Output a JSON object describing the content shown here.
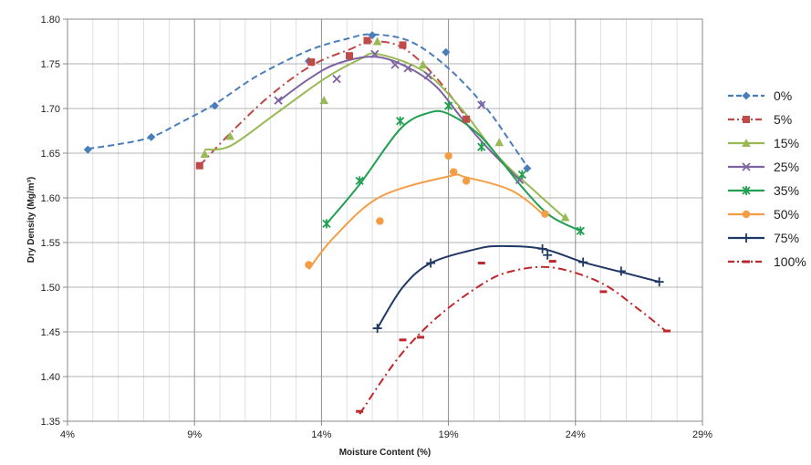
{
  "chart_data": {
    "type": "scatter",
    "xlabel": "Moisture Content (%)",
    "ylabel": "Dry Density (Mg/m³)",
    "xlim": [
      0.04,
      0.29
    ],
    "ylim": [
      1.35,
      1.8
    ],
    "x_major_ticks": [
      0.04,
      0.09,
      0.14,
      0.19,
      0.24,
      0.29
    ],
    "x_tick_labels": [
      "4%",
      "9%",
      "14%",
      "19%",
      "24%",
      "29%"
    ],
    "y_ticks": [
      1.35,
      1.4,
      1.45,
      1.5,
      1.55,
      1.6,
      1.65,
      1.7,
      1.75,
      1.8
    ],
    "y_tick_labels": [
      "1.35",
      "1.40",
      "1.45",
      "1.50",
      "1.55",
      "1.60",
      "1.65",
      "1.70",
      "1.75",
      "1.80"
    ],
    "grid": true,
    "legend_position": "right",
    "series": [
      {
        "name": "0%",
        "color": "#4a7ebb",
        "marker": "diamond",
        "dash": "dashed",
        "points": [
          [
            0.048,
            1.654
          ],
          [
            0.073,
            1.668
          ],
          [
            0.098,
            1.703
          ],
          [
            0.135,
            1.753
          ],
          [
            0.16,
            1.782
          ],
          [
            0.189,
            1.763
          ],
          [
            0.221,
            1.633
          ]
        ],
        "fit": [
          [
            0.048,
            1.655
          ],
          [
            0.06,
            1.66
          ],
          [
            0.073,
            1.668
          ],
          [
            0.085,
            1.685
          ],
          [
            0.098,
            1.705
          ],
          [
            0.115,
            1.737
          ],
          [
            0.135,
            1.765
          ],
          [
            0.15,
            1.778
          ],
          [
            0.16,
            1.783
          ],
          [
            0.175,
            1.775
          ],
          [
            0.19,
            1.745
          ],
          [
            0.205,
            1.7
          ],
          [
            0.215,
            1.66
          ],
          [
            0.221,
            1.635
          ]
        ]
      },
      {
        "name": "5%",
        "color": "#be4b48",
        "marker": "square",
        "dash": "dashdot",
        "points": [
          [
            0.092,
            1.636
          ],
          [
            0.136,
            1.752
          ],
          [
            0.151,
            1.759
          ],
          [
            0.158,
            1.776
          ],
          [
            0.172,
            1.771
          ],
          [
            0.197,
            1.688
          ]
        ],
        "fit": [
          [
            0.092,
            1.636
          ],
          [
            0.105,
            1.675
          ],
          [
            0.12,
            1.715
          ],
          [
            0.136,
            1.748
          ],
          [
            0.151,
            1.766
          ],
          [
            0.16,
            1.775
          ],
          [
            0.172,
            1.768
          ],
          [
            0.185,
            1.735
          ],
          [
            0.197,
            1.69
          ]
        ]
      },
      {
        "name": "15%",
        "color": "#98b954",
        "marker": "triangle",
        "dash": "solid",
        "points": [
          [
            0.094,
            1.649
          ],
          [
            0.104,
            1.669
          ],
          [
            0.141,
            1.709
          ],
          [
            0.162,
            1.775
          ],
          [
            0.18,
            1.749
          ],
          [
            0.21,
            1.662
          ],
          [
            0.236,
            1.578
          ]
        ],
        "fit": [
          [
            0.094,
            1.654
          ],
          [
            0.104,
            1.658
          ],
          [
            0.12,
            1.69
          ],
          [
            0.141,
            1.733
          ],
          [
            0.155,
            1.755
          ],
          [
            0.162,
            1.761
          ],
          [
            0.18,
            1.742
          ],
          [
            0.195,
            1.7
          ],
          [
            0.21,
            1.645
          ],
          [
            0.225,
            1.605
          ],
          [
            0.236,
            1.577
          ]
        ]
      },
      {
        "name": "25%",
        "color": "#7e63a1",
        "marker": "x",
        "dash": "solid",
        "points": [
          [
            0.123,
            1.709
          ],
          [
            0.146,
            1.733
          ],
          [
            0.161,
            1.761
          ],
          [
            0.169,
            1.749
          ],
          [
            0.174,
            1.745
          ],
          [
            0.182,
            1.737
          ],
          [
            0.203,
            1.704
          ],
          [
            0.218,
            1.62
          ]
        ],
        "fit": [
          [
            0.123,
            1.708
          ],
          [
            0.135,
            1.733
          ],
          [
            0.146,
            1.75
          ],
          [
            0.161,
            1.758
          ],
          [
            0.174,
            1.746
          ],
          [
            0.185,
            1.725
          ],
          [
            0.195,
            1.69
          ],
          [
            0.205,
            1.657
          ],
          [
            0.218,
            1.62
          ]
        ]
      },
      {
        "name": "35%",
        "color": "#20a050",
        "marker": "asterisk",
        "dash": "solid",
        "points": [
          [
            0.142,
            1.571
          ],
          [
            0.155,
            1.619
          ],
          [
            0.171,
            1.686
          ],
          [
            0.19,
            1.703
          ],
          [
            0.203,
            1.657
          ],
          [
            0.219,
            1.626
          ],
          [
            0.242,
            1.563
          ]
        ],
        "fit": [
          [
            0.142,
            1.571
          ],
          [
            0.155,
            1.615
          ],
          [
            0.171,
            1.677
          ],
          [
            0.182,
            1.695
          ],
          [
            0.19,
            1.694
          ],
          [
            0.203,
            1.668
          ],
          [
            0.219,
            1.612
          ],
          [
            0.23,
            1.58
          ],
          [
            0.242,
            1.563
          ]
        ]
      },
      {
        "name": "50%",
        "color": "#f59d45",
        "marker": "circle",
        "dash": "solid",
        "points": [
          [
            0.135,
            1.525
          ],
          [
            0.163,
            1.574
          ],
          [
            0.19,
            1.647
          ],
          [
            0.192,
            1.629
          ],
          [
            0.197,
            1.619
          ],
          [
            0.228,
            1.582
          ]
        ],
        "fit": [
          [
            0.135,
            1.52
          ],
          [
            0.145,
            1.556
          ],
          [
            0.163,
            1.601
          ],
          [
            0.19,
            1.624
          ],
          [
            0.197,
            1.623
          ],
          [
            0.215,
            1.608
          ],
          [
            0.228,
            1.58
          ]
        ]
      },
      {
        "name": "75%",
        "color": "#1f3864",
        "marker": "plus",
        "dash": "solid",
        "points": [
          [
            0.162,
            1.454
          ],
          [
            0.183,
            1.527
          ],
          [
            0.227,
            1.543
          ],
          [
            0.229,
            1.536
          ],
          [
            0.243,
            1.528
          ],
          [
            0.258,
            1.518
          ],
          [
            0.273,
            1.506
          ]
        ],
        "fit": [
          [
            0.162,
            1.454
          ],
          [
            0.172,
            1.5
          ],
          [
            0.183,
            1.527
          ],
          [
            0.2,
            1.542
          ],
          [
            0.21,
            1.546
          ],
          [
            0.227,
            1.543
          ],
          [
            0.243,
            1.528
          ],
          [
            0.258,
            1.517
          ],
          [
            0.273,
            1.506
          ]
        ]
      },
      {
        "name": "100%",
        "color": "#c0272d",
        "marker": "dash",
        "dash": "dashdot",
        "points": [
          [
            0.155,
            1.361
          ],
          [
            0.172,
            1.441
          ],
          [
            0.179,
            1.444
          ],
          [
            0.203,
            1.527
          ],
          [
            0.231,
            1.529
          ],
          [
            0.251,
            1.495
          ],
          [
            0.276,
            1.451
          ]
        ],
        "fit": [
          [
            0.155,
            1.358
          ],
          [
            0.17,
            1.42
          ],
          [
            0.185,
            1.465
          ],
          [
            0.203,
            1.503
          ],
          [
            0.215,
            1.518
          ],
          [
            0.231,
            1.522
          ],
          [
            0.25,
            1.505
          ],
          [
            0.265,
            1.475
          ],
          [
            0.276,
            1.45
          ]
        ]
      }
    ]
  }
}
